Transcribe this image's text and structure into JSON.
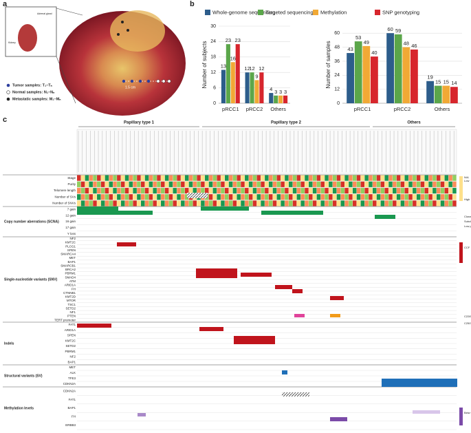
{
  "panel_labels": [
    "a",
    "b",
    "c"
  ],
  "illustration": {
    "inset_labels": [
      "Adrenal gland",
      "Kidney"
    ],
    "scale": "1.5 cm",
    "legend": [
      "Tumor samples: T₁–Tₙ",
      "Normal samples: N₁–Nₙ",
      "Metastatic samples: M₁–Mₙ"
    ]
  },
  "chart_data": [
    {
      "type": "bar",
      "ylabel": "Number of subjects",
      "categories": [
        "pRCC1",
        "pRCC2",
        "Others"
      ],
      "series": [
        {
          "name": "Whole-genome sequencing",
          "color": "#2d5d8b",
          "values": [
            13,
            12,
            4
          ]
        },
        {
          "name": "Targeted sequencing",
          "color": "#5ba64a",
          "values": [
            23,
            12,
            3
          ]
        },
        {
          "name": "Methylation",
          "color": "#f1a935",
          "values": [
            16,
            9,
            3
          ]
        },
        {
          "name": "SNP genotyping",
          "color": "#d7262d",
          "values": [
            23,
            12,
            3
          ]
        }
      ],
      "ylim": [
        0,
        30
      ],
      "yticks": [
        0,
        6,
        12,
        18,
        24,
        30
      ],
      "grid": true
    },
    {
      "type": "bar",
      "ylabel": "Number of samples",
      "categories": [
        "pRCC1",
        "pRCC2",
        "Others"
      ],
      "series": [
        {
          "name": "Whole-genome sequencing",
          "color": "#2d5d8b",
          "values": [
            43,
            60,
            19
          ]
        },
        {
          "name": "Targeted sequencing",
          "color": "#5ba64a",
          "values": [
            53,
            59,
            15
          ]
        },
        {
          "name": "Methylation",
          "color": "#f1a935",
          "values": [
            49,
            48,
            15
          ]
        },
        {
          "name": "SNP genotyping",
          "color": "#d7262d",
          "values": [
            40,
            46,
            14
          ]
        }
      ],
      "ylim": [
        0,
        66
      ],
      "yticks": [
        0,
        12,
        24,
        36,
        48,
        60
      ],
      "grid": true
    }
  ],
  "heatmap": {
    "groups": [
      "Papillary type 1",
      "Papillary type 2",
      "Others"
    ],
    "sections": [
      {
        "name": "",
        "rows": [
          "Stage",
          "Purity",
          "Telomere length",
          "Number of SVs",
          "Number of SNVs"
        ]
      },
      {
        "name": "Copy number aberrations (SCNA)",
        "rows": [
          "7 gain",
          "12 gain",
          "16 gain",
          "17 gain",
          "Y loss"
        ]
      },
      {
        "name": "Single-nucleotide variants (SNV)",
        "rows": [
          "NF2",
          "KMT2C",
          "PLCG1",
          "SPEN",
          "SMARCA4",
          "MET",
          "BAP1",
          "SMARCB1",
          "BRCA2",
          "PBRM1",
          "SMAD4",
          "ATM",
          "ARID1A",
          "FH",
          "CTNNB1",
          "KMT2D",
          "MTOR",
          "TSC1",
          "SETD2",
          "NF1",
          "PTEN",
          "TERT promoter"
        ]
      },
      {
        "name": "Indels",
        "rows": [
          "FAT1",
          "ARID1A",
          "SPEN",
          "KMT2C",
          "SETD2",
          "PBRM1",
          "NF2",
          "BAP1"
        ]
      },
      {
        "name": "Structural variants (SV)",
        "rows": [
          "MET",
          "ALK",
          "TFE3",
          "CDKN2A"
        ]
      },
      {
        "name": "Methylation levels",
        "rows": [
          "CDKN2A",
          "FAT1",
          "BAP1",
          "FH",
          "ERBB3"
        ]
      }
    ],
    "legend_labels": [
      "N/A",
      "Low",
      "High",
      "Clonal",
      "Subclonal",
      "Low purity",
      "CCF",
      "C228T",
      "C250T",
      "Beta value"
    ]
  }
}
